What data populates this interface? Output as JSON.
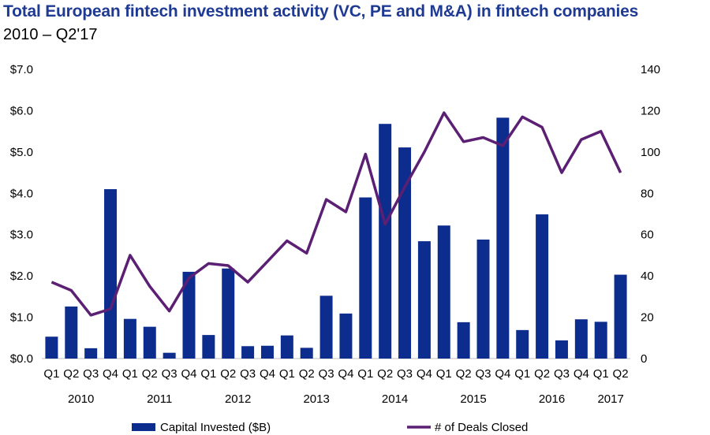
{
  "chart_data": {
    "type": "bar",
    "title": "Total European fintech investment activity (VC, PE and M&A) in fintech companies",
    "subtitle": "2010 – Q2'17",
    "quarters": [
      "Q1",
      "Q2",
      "Q3",
      "Q4",
      "Q1",
      "Q2",
      "Q3",
      "Q4",
      "Q1",
      "Q2",
      "Q3",
      "Q4",
      "Q1",
      "Q2",
      "Q3",
      "Q4",
      "Q1",
      "Q2",
      "Q3",
      "Q4",
      "Q1",
      "Q2",
      "Q3",
      "Q4",
      "Q1",
      "Q2",
      "Q3",
      "Q4",
      "Q1",
      "Q2"
    ],
    "years": [
      "2010",
      "2011",
      "2012",
      "2013",
      "2014",
      "2015",
      "2016",
      "2017"
    ],
    "series": [
      {
        "name": "Capital Invested ($B)",
        "type": "bar",
        "axis": "left",
        "color": "#0d2d8e",
        "values": [
          0.53,
          1.26,
          0.25,
          4.1,
          0.96,
          0.77,
          0.14,
          2.1,
          0.57,
          2.18,
          0.3,
          0.31,
          0.56,
          0.26,
          1.52,
          1.09,
          3.9,
          5.68,
          5.11,
          2.84,
          3.22,
          0.88,
          2.88,
          5.83,
          0.69,
          3.49,
          0.44,
          0.95,
          0.89,
          2.03
        ]
      },
      {
        "name": "# of Deals Closed",
        "type": "line",
        "axis": "right",
        "color": "#5b1f73",
        "values": [
          37,
          33,
          21,
          24,
          50,
          35,
          23,
          39,
          46,
          45,
          37,
          47,
          57,
          51,
          77,
          71,
          99,
          65,
          83,
          100,
          119,
          105,
          107,
          103,
          117,
          112,
          90,
          106,
          110,
          90
        ]
      }
    ],
    "left_axis": {
      "ticks": [
        "$0.0",
        "$1.0",
        "$2.0",
        "$3.0",
        "$4.0",
        "$5.0",
        "$6.0",
        "$7.0"
      ],
      "ylim": [
        0,
        7
      ]
    },
    "right_axis": {
      "ticks": [
        "0",
        "20",
        "40",
        "60",
        "80",
        "100",
        "120",
        "140"
      ],
      "ylim": [
        0,
        140
      ]
    },
    "legend_position": "bottom",
    "grid": false
  }
}
